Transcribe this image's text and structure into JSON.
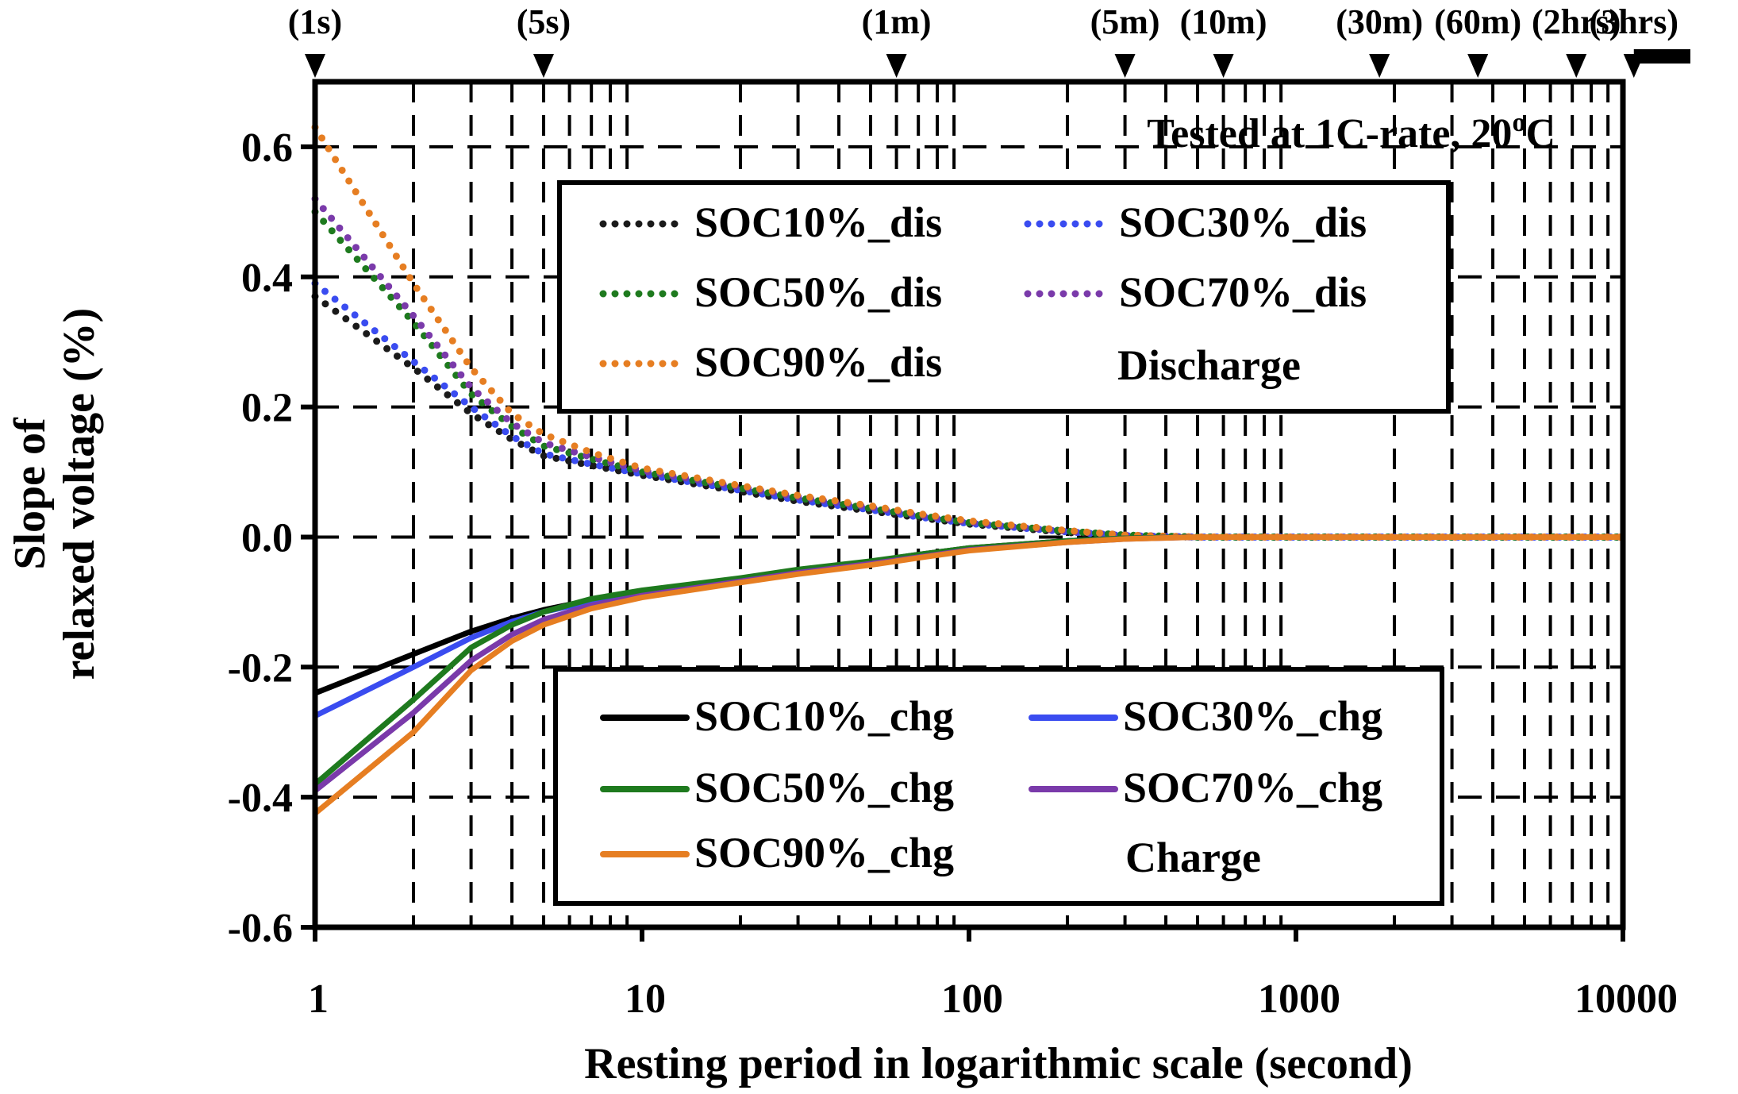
{
  "chart_data": {
    "type": "line",
    "title": "",
    "annotation": {
      "prefix": "Tested at 1C-rate, 20",
      "sup": "o",
      "suffix": "C"
    },
    "xlabel": "Resting period in logarithmic scale (second)",
    "ylabel_lines": [
      "Slope of",
      "relaxed voltage (%)"
    ],
    "x_scale": "log",
    "xlim": [
      1,
      10000
    ],
    "ylim": [
      -0.6,
      0.7
    ],
    "x_ticks": [
      1,
      10,
      100,
      1000,
      10000
    ],
    "x_tick_labels": [
      "1",
      "10",
      "100",
      "1000",
      "10000"
    ],
    "y_ticks": [
      -0.6,
      -0.4,
      -0.2,
      0.0,
      0.2,
      0.4,
      0.6
    ],
    "y_tick_labels": [
      "-0.6",
      "-0.4",
      "-0.2",
      "0.0",
      "0.2",
      "0.4",
      "0.6"
    ],
    "y_gridlines": [
      -0.4,
      -0.2,
      0.0,
      0.2,
      0.4,
      0.6
    ],
    "grid": true,
    "time_markers": [
      {
        "label": "(1s)",
        "x": 1
      },
      {
        "label": "(5s)",
        "x": 5
      },
      {
        "label": "(1m)",
        "x": 60
      },
      {
        "label": "(5m)",
        "x": 300
      },
      {
        "label": "(10m)",
        "x": 600
      },
      {
        "label": "(30m)",
        "x": 1800
      },
      {
        "label": "(60m)",
        "x": 3600
      },
      {
        "label": "(2hrs)",
        "x": 7200
      },
      {
        "label": "(3hrs)",
        "x": 10800
      }
    ],
    "legend_discharge": {
      "placement": "upper-center",
      "group_label": "Discharge",
      "entries": [
        "SOC10%_dis",
        "SOC30%_dis",
        "SOC50%_dis",
        "SOC70%_dis",
        "SOC90%_dis"
      ]
    },
    "legend_charge": {
      "placement": "lower-center",
      "group_label": "Charge",
      "entries": [
        "SOC10%_chg",
        "SOC30%_chg",
        "SOC50%_chg",
        "SOC70%_chg",
        "SOC90%_chg"
      ]
    },
    "series": [
      {
        "name": "SOC10%_dis",
        "color": "#1a1a1a",
        "style": "dotted",
        "x": [
          1,
          2,
          3,
          4,
          5,
          7,
          10,
          20,
          30,
          50,
          70,
          100,
          200,
          300,
          500,
          1000,
          3000,
          10000
        ],
        "values": [
          0.37,
          0.26,
          0.19,
          0.15,
          0.125,
          0.11,
          0.095,
          0.07,
          0.055,
          0.04,
          0.03,
          0.02,
          0.007,
          0.002,
          0.0,
          0.0,
          0.0,
          0.0
        ]
      },
      {
        "name": "SOC30%_dis",
        "color": "#3a4cf0",
        "style": "dotted",
        "x": [
          1,
          2,
          3,
          4,
          5,
          7,
          10,
          20,
          30,
          50,
          70,
          100,
          200,
          300,
          500,
          1000,
          3000,
          10000
        ],
        "values": [
          0.39,
          0.27,
          0.2,
          0.155,
          0.128,
          0.112,
          0.097,
          0.072,
          0.057,
          0.042,
          0.031,
          0.021,
          0.008,
          0.002,
          0.0,
          0.0,
          0.0,
          0.0
        ]
      },
      {
        "name": "SOC50%_dis",
        "color": "#1e7a1e",
        "style": "dotted",
        "x": [
          1,
          2,
          3,
          4,
          5,
          7,
          10,
          20,
          30,
          50,
          70,
          100,
          200,
          300,
          500,
          1000,
          3000,
          10000
        ],
        "values": [
          0.5,
          0.33,
          0.22,
          0.17,
          0.14,
          0.12,
          0.1,
          0.075,
          0.06,
          0.044,
          0.033,
          0.022,
          0.009,
          0.003,
          0.0,
          0.0,
          0.0,
          0.0
        ]
      },
      {
        "name": "SOC70%_dis",
        "color": "#7a3aaa",
        "style": "dotted",
        "x": [
          1,
          2,
          3,
          4,
          5,
          7,
          10,
          20,
          30,
          50,
          70,
          100,
          200,
          300,
          500,
          1000,
          3000,
          10000
        ],
        "values": [
          0.52,
          0.34,
          0.23,
          0.175,
          0.145,
          0.123,
          0.102,
          0.077,
          0.062,
          0.046,
          0.034,
          0.023,
          0.009,
          0.003,
          0.0,
          0.0,
          0.0,
          0.0
        ]
      },
      {
        "name": "SOC90%_dis",
        "color": "#e67e22",
        "style": "dotted",
        "x": [
          1,
          2,
          3,
          4,
          5,
          7,
          10,
          20,
          30,
          50,
          70,
          100,
          200,
          300,
          500,
          1000,
          3000,
          10000
        ],
        "values": [
          0.63,
          0.39,
          0.26,
          0.19,
          0.158,
          0.13,
          0.106,
          0.079,
          0.064,
          0.048,
          0.036,
          0.025,
          0.01,
          0.003,
          0.0,
          0.0,
          0.0,
          0.0
        ]
      },
      {
        "name": "SOC10%_chg",
        "color": "#000000",
        "style": "solid",
        "x": [
          1,
          2,
          3,
          4,
          5,
          7,
          10,
          20,
          30,
          50,
          70,
          100,
          200,
          300,
          500,
          1000,
          3000,
          10000
        ],
        "values": [
          -0.24,
          -0.18,
          -0.145,
          -0.125,
          -0.112,
          -0.097,
          -0.085,
          -0.065,
          -0.052,
          -0.038,
          -0.027,
          -0.017,
          -0.006,
          -0.002,
          0.0,
          0.0,
          0.0,
          0.0
        ]
      },
      {
        "name": "SOC30%_chg",
        "color": "#3a4cf0",
        "style": "solid",
        "x": [
          1,
          2,
          3,
          4,
          5,
          7,
          10,
          20,
          30,
          50,
          70,
          100,
          200,
          300,
          500,
          1000,
          3000,
          10000
        ],
        "values": [
          -0.275,
          -0.2,
          -0.155,
          -0.13,
          -0.115,
          -0.099,
          -0.087,
          -0.066,
          -0.053,
          -0.039,
          -0.028,
          -0.018,
          -0.006,
          -0.002,
          0.0,
          0.0,
          0.0,
          0.0
        ]
      },
      {
        "name": "SOC50%_chg",
        "color": "#1e7a1e",
        "style": "solid",
        "x": [
          1,
          2,
          3,
          4,
          5,
          7,
          10,
          20,
          30,
          50,
          70,
          100,
          200,
          300,
          500,
          1000,
          3000,
          10000
        ],
        "values": [
          -0.38,
          -0.25,
          -0.17,
          -0.135,
          -0.115,
          -0.095,
          -0.082,
          -0.063,
          -0.05,
          -0.037,
          -0.027,
          -0.017,
          -0.006,
          -0.002,
          0.0,
          0.0,
          0.0,
          0.0
        ]
      },
      {
        "name": "SOC70%_chg",
        "color": "#7a3aaa",
        "style": "solid",
        "x": [
          1,
          2,
          3,
          4,
          5,
          7,
          10,
          20,
          30,
          50,
          70,
          100,
          200,
          300,
          500,
          1000,
          3000,
          10000
        ],
        "values": [
          -0.39,
          -0.27,
          -0.19,
          -0.15,
          -0.127,
          -0.105,
          -0.09,
          -0.068,
          -0.055,
          -0.041,
          -0.031,
          -0.02,
          -0.008,
          -0.003,
          0.0,
          0.0,
          0.0,
          0.0
        ]
      },
      {
        "name": "SOC90%_chg",
        "color": "#e67e22",
        "style": "solid",
        "x": [
          1,
          2,
          3,
          4,
          5,
          7,
          10,
          20,
          30,
          50,
          70,
          100,
          200,
          300,
          500,
          1000,
          3000,
          10000
        ],
        "values": [
          -0.425,
          -0.3,
          -0.205,
          -0.16,
          -0.135,
          -0.11,
          -0.093,
          -0.07,
          -0.057,
          -0.043,
          -0.032,
          -0.021,
          -0.008,
          -0.003,
          0.0,
          0.0,
          0.0,
          0.0
        ]
      }
    ]
  }
}
